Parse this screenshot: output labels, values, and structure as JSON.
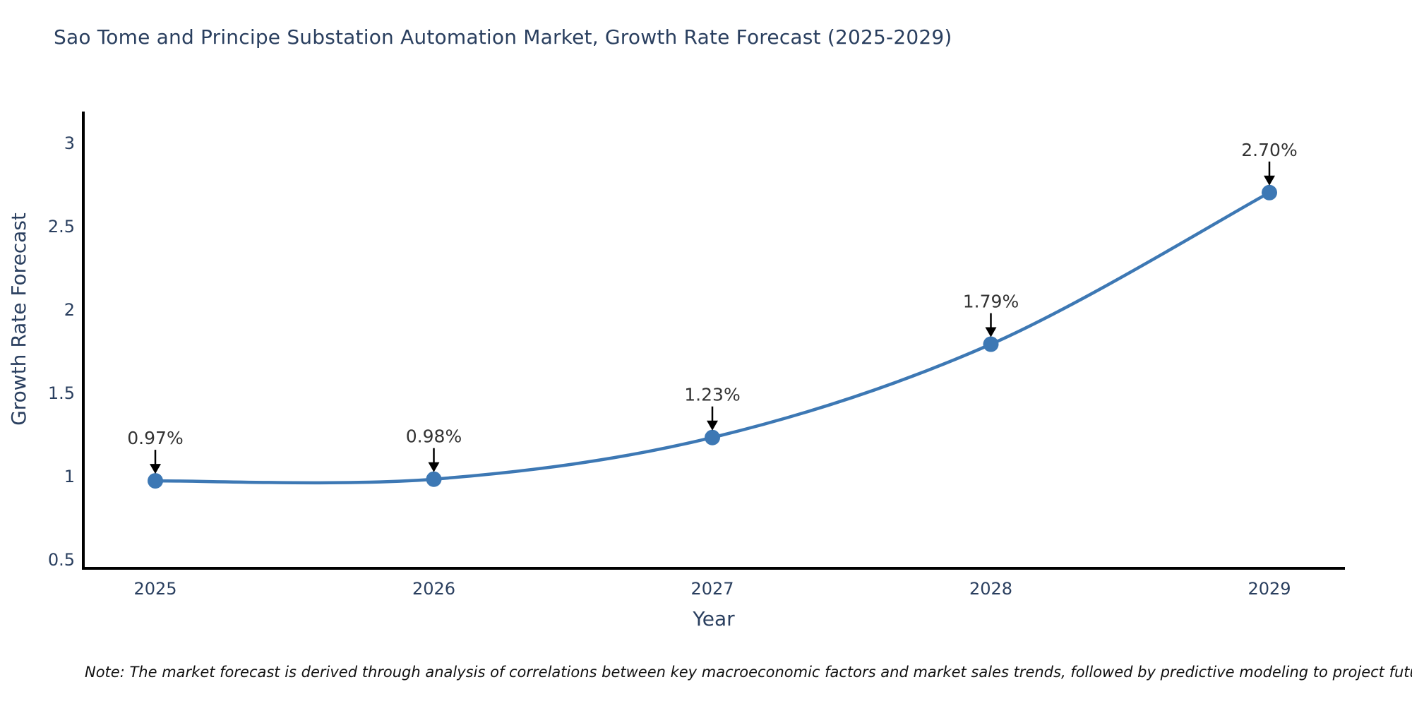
{
  "title": "Sao Tome and Principe Substation Automation Market, Growth Rate Forecast (2025-2029)",
  "note": "Note: The market forecast is derived through analysis of correlations between key macroeconomic factors and market sales trends, followed by predictive modeling to project future sales",
  "colors": {
    "line": "#3d78b4",
    "marker": "#3d78b4",
    "axis_line": "#000000",
    "arrow": "#000000",
    "title_text": "#2a3f5f",
    "tick_text": "#2a3f5f",
    "annotation_text": "#333333",
    "note_text": "#111111",
    "background": "#ffffff"
  },
  "chart_data": {
    "type": "line",
    "title": "Sao Tome and Principe Substation Automation Market, Growth Rate Forecast (2025-2029)",
    "x": [
      2025,
      2026,
      2027,
      2028,
      2029
    ],
    "values": [
      0.97,
      0.98,
      1.23,
      1.79,
      2.7
    ],
    "point_labels": [
      "0.97%",
      "0.98%",
      "1.23%",
      "1.79%",
      "2.70%"
    ],
    "series_name": "Growth Rate Forecast",
    "xlabel": "Year",
    "ylabel": "Growth Rate Forecast",
    "yticks": [
      0.5,
      1,
      1.5,
      2,
      2.5,
      3
    ],
    "ylim": [
      0.44,
      3.19
    ],
    "line_shape": "spline",
    "grid": false,
    "markers": true,
    "legend": "none",
    "annotations": "percent value above each point with black downward arrow"
  }
}
